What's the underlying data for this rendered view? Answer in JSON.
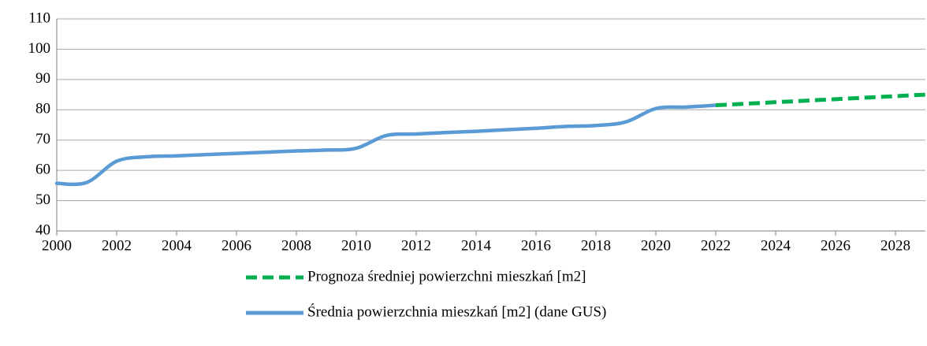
{
  "chart_data": {
    "type": "line",
    "x": [
      2000,
      2001,
      2002,
      2003,
      2004,
      2005,
      2006,
      2007,
      2008,
      2009,
      2010,
      2011,
      2012,
      2013,
      2014,
      2015,
      2016,
      2017,
      2018,
      2019,
      2020,
      2021,
      2022,
      2023,
      2024,
      2025,
      2026,
      2027,
      2028,
      2029
    ],
    "series": [
      {
        "name": "Prognoza średniej powierzchni mieszkań  [m2]",
        "color": "#00b050",
        "dashed": true,
        "values": [
          null,
          null,
          null,
          null,
          null,
          null,
          null,
          null,
          null,
          null,
          null,
          null,
          null,
          null,
          null,
          null,
          null,
          null,
          null,
          null,
          null,
          null,
          81.5,
          82.0,
          82.5,
          83.0,
          83.5,
          84.0,
          84.5,
          85.0
        ]
      },
      {
        "name": "Średnia powierzchnia mieszkań  [m2] (dane GUS)",
        "color": "#5b9bd5",
        "dashed": false,
        "values": [
          55.7,
          56.0,
          63.0,
          64.5,
          64.8,
          65.2,
          65.6,
          66.0,
          66.4,
          66.7,
          67.3,
          71.5,
          72.0,
          72.5,
          72.9,
          73.4,
          73.9,
          74.5,
          74.8,
          76.0,
          80.4,
          80.9,
          81.5,
          null,
          null,
          null,
          null,
          null,
          null,
          null
        ]
      }
    ],
    "xlim": [
      2000,
      2029
    ],
    "xticks": [
      2000,
      2002,
      2004,
      2006,
      2008,
      2010,
      2012,
      2014,
      2016,
      2018,
      2020,
      2022,
      2024,
      2026,
      2028
    ],
    "ylim": [
      40,
      110
    ],
    "yticks": [
      40,
      50,
      60,
      70,
      80,
      90,
      100,
      110
    ],
    "grid": true
  }
}
